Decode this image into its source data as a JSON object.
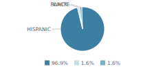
{
  "chart_data": {
    "type": "pie",
    "categories": [
      "HISPANIC",
      "BLACK",
      "WHITE"
    ],
    "values": [
      96.9,
      1.6,
      1.6
    ],
    "value_labels": [
      "96.9%",
      "1.6%",
      "1.6%"
    ],
    "colors": [
      "#3d7fa3",
      "#c8dce8",
      "#7eafc4"
    ],
    "legend": "bottom"
  }
}
